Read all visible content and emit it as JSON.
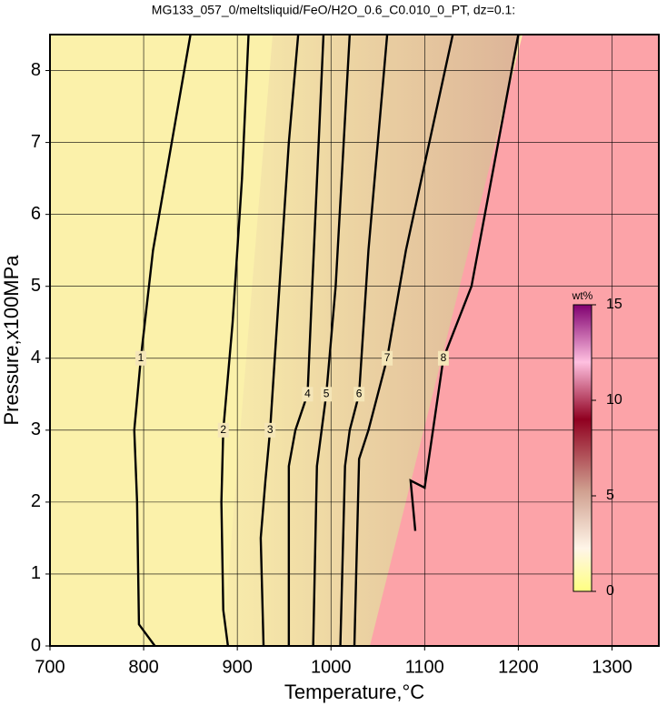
{
  "chart_data": {
    "type": "contour",
    "title": "MG133_057_0/meltsliquid/FeO/H2O_0.6_C0.010_0_PT, dz=0.1:",
    "x_label": "Temperature,°C",
    "y_label": "Pressure,x100MPa",
    "xlim": [
      700,
      1350
    ],
    "xticks": [
      700,
      800,
      900,
      1000,
      1100,
      1200,
      1300
    ],
    "ylim": [
      0,
      8.5
    ],
    "yticks": [
      0,
      1,
      2,
      3,
      4,
      5,
      6,
      7,
      8
    ],
    "grid": true,
    "contours": [
      {
        "level": 1,
        "x": [
          812,
          795,
          793,
          790,
          797,
          810,
          830,
          850
        ],
        "y": [
          0,
          0.3,
          2,
          3,
          4,
          5.5,
          7,
          8.5
        ]
      },
      {
        "level": 2,
        "x": [
          890,
          885,
          883,
          885,
          895,
          905,
          912
        ],
        "y": [
          0,
          0.5,
          2,
          3,
          4.5,
          6.5,
          8.5
        ]
      },
      {
        "level": 3,
        "x": [
          928,
          925,
          930,
          935,
          945,
          955,
          965
        ],
        "y": [
          0,
          1.5,
          2.3,
          3,
          5,
          7,
          8.5
        ]
      },
      {
        "level": 4,
        "x": [
          955,
          955,
          962,
          975,
          980,
          992
        ],
        "y": [
          0,
          2.5,
          3,
          3.5,
          5,
          8.5
        ]
      },
      {
        "level": 5,
        "x": [
          981,
          985,
          990,
          995,
          1005,
          1020
        ],
        "y": [
          0,
          2.5,
          3,
          3.5,
          5,
          8.5
        ]
      },
      {
        "level": 6,
        "x": [
          1010,
          1015,
          1020,
          1030,
          1040,
          1060
        ],
        "y": [
          0,
          2.5,
          3,
          3.5,
          5.5,
          8.5
        ]
      },
      {
        "level": 7,
        "x": [
          1025,
          1030,
          1040,
          1060,
          1080,
          1130
        ],
        "y": [
          0,
          2.6,
          3,
          4,
          5.5,
          8.5
        ]
      },
      {
        "level": 8,
        "x": [
          1090,
          1085,
          1100,
          1120,
          1150,
          1200
        ],
        "y": [
          1.6,
          2.3,
          2.2,
          4,
          5,
          8.5
        ]
      }
    ],
    "colorbar": {
      "label": "wt%",
      "lim": [
        0,
        15
      ],
      "ticks": [
        0,
        5,
        10,
        15
      ]
    }
  }
}
